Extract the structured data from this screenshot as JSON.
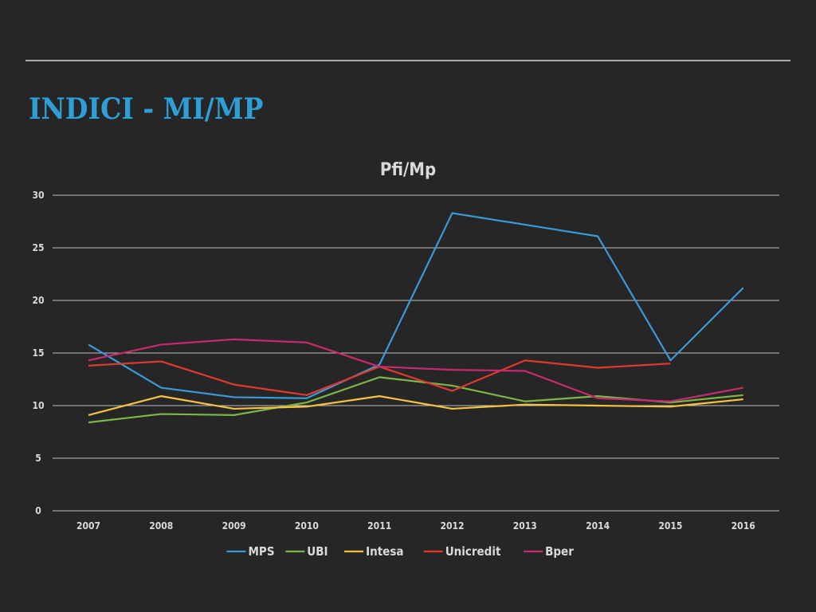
{
  "slide": {
    "title": "INDICI - MI/MP"
  },
  "chart_data": {
    "type": "line",
    "title": "Pfi/Mp",
    "xlabel": "",
    "ylabel": "",
    "categories": [
      "2007",
      "2008",
      "2009",
      "2010",
      "2011",
      "2012",
      "2013",
      "2014",
      "2015",
      "2016"
    ],
    "ylim": [
      0,
      30
    ],
    "yticks": [
      0,
      5,
      10,
      15,
      20,
      25,
      30
    ],
    "grid": true,
    "legend": "bottom",
    "series": [
      {
        "name": "MPS",
        "color": "#3a9ad9",
        "values": [
          15.8,
          11.7,
          10.8,
          10.7,
          13.9,
          28.3,
          27.2,
          26.1,
          14.3,
          21.2
        ]
      },
      {
        "name": "UBI",
        "color": "#7ab648",
        "values": [
          8.4,
          9.2,
          9.1,
          10.3,
          12.7,
          11.9,
          10.4,
          10.9,
          10.3,
          11.0
        ]
      },
      {
        "name": "Intesa",
        "color": "#f5c242",
        "values": [
          9.1,
          10.9,
          9.7,
          9.9,
          10.9,
          9.7,
          10.1,
          10.0,
          9.9,
          10.6
        ]
      },
      {
        "name": "Unicredit",
        "color": "#e03a2f",
        "values": [
          13.8,
          14.2,
          12.0,
          11.0,
          13.7,
          11.4,
          14.3,
          13.6,
          14.0,
          null
        ]
      },
      {
        "name": "Bper",
        "color": "#c72a6e",
        "values": [
          14.3,
          15.8,
          16.3,
          16.0,
          13.7,
          13.4,
          13.3,
          10.7,
          10.4,
          11.7
        ]
      }
    ]
  }
}
